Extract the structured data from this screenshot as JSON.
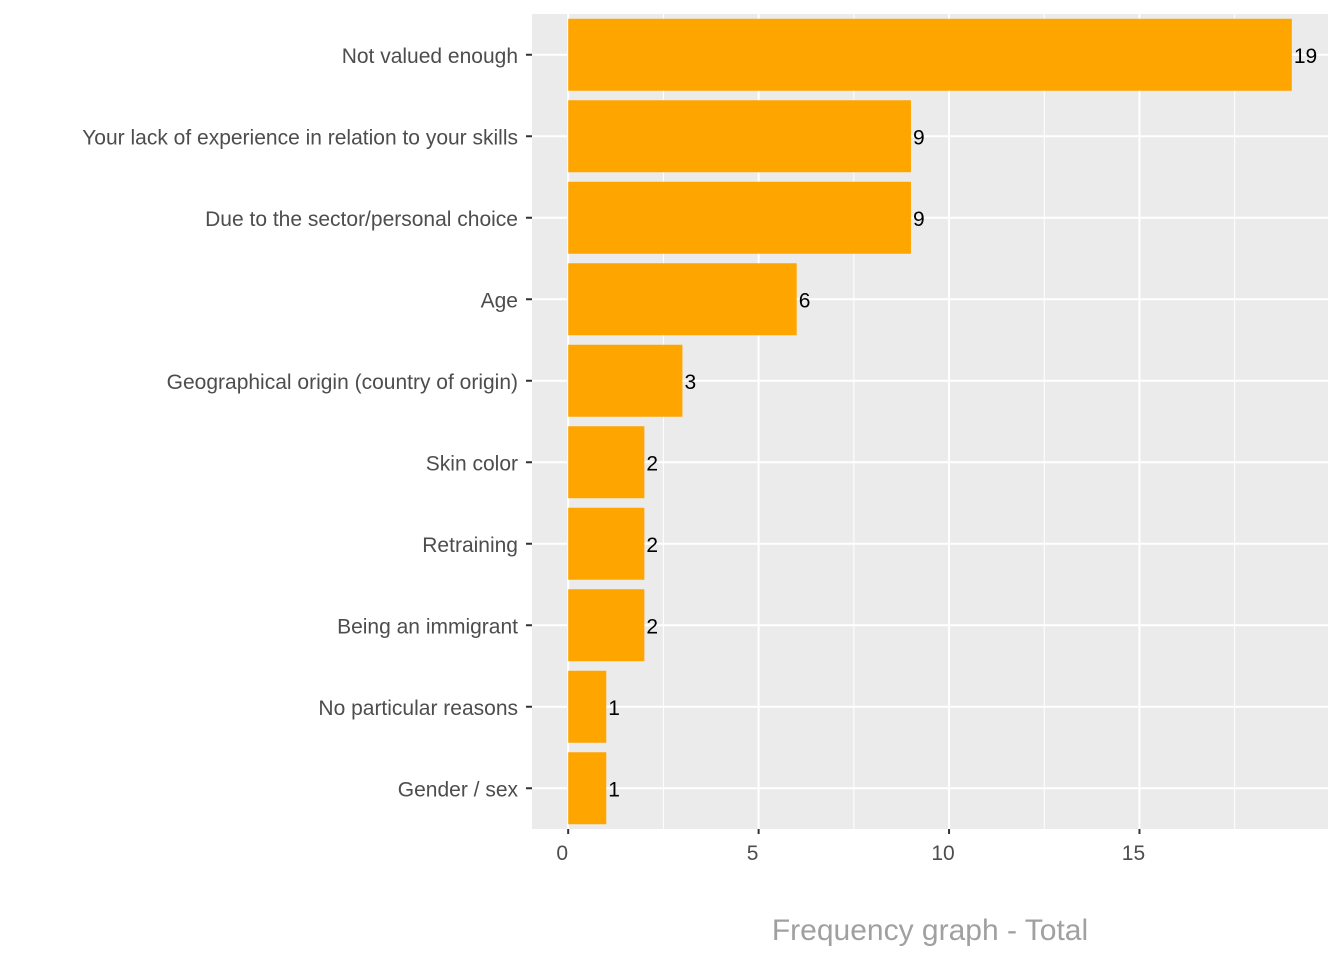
{
  "chart_data": {
    "type": "bar",
    "orientation": "horizontal",
    "categories": [
      "Not valued enough",
      "Your lack of experience in relation to your skills",
      "Due to the sector/personal choice",
      "Age",
      "Geographical origin (country of origin)",
      "Skin color",
      "Retraining",
      "Being an immigrant",
      "No particular reasons",
      "Gender / sex"
    ],
    "values": [
      19,
      9,
      9,
      6,
      3,
      2,
      2,
      2,
      1,
      1
    ],
    "title": "",
    "xlabel": "Frequency graph - Total",
    "ylabel": "",
    "xlim": [
      -0.95,
      19.95
    ],
    "xticks": [
      0,
      5,
      10,
      15
    ],
    "grid": true,
    "legend": "none",
    "bar_color": "#FFA500",
    "panel_color": "#EBEBEB"
  }
}
